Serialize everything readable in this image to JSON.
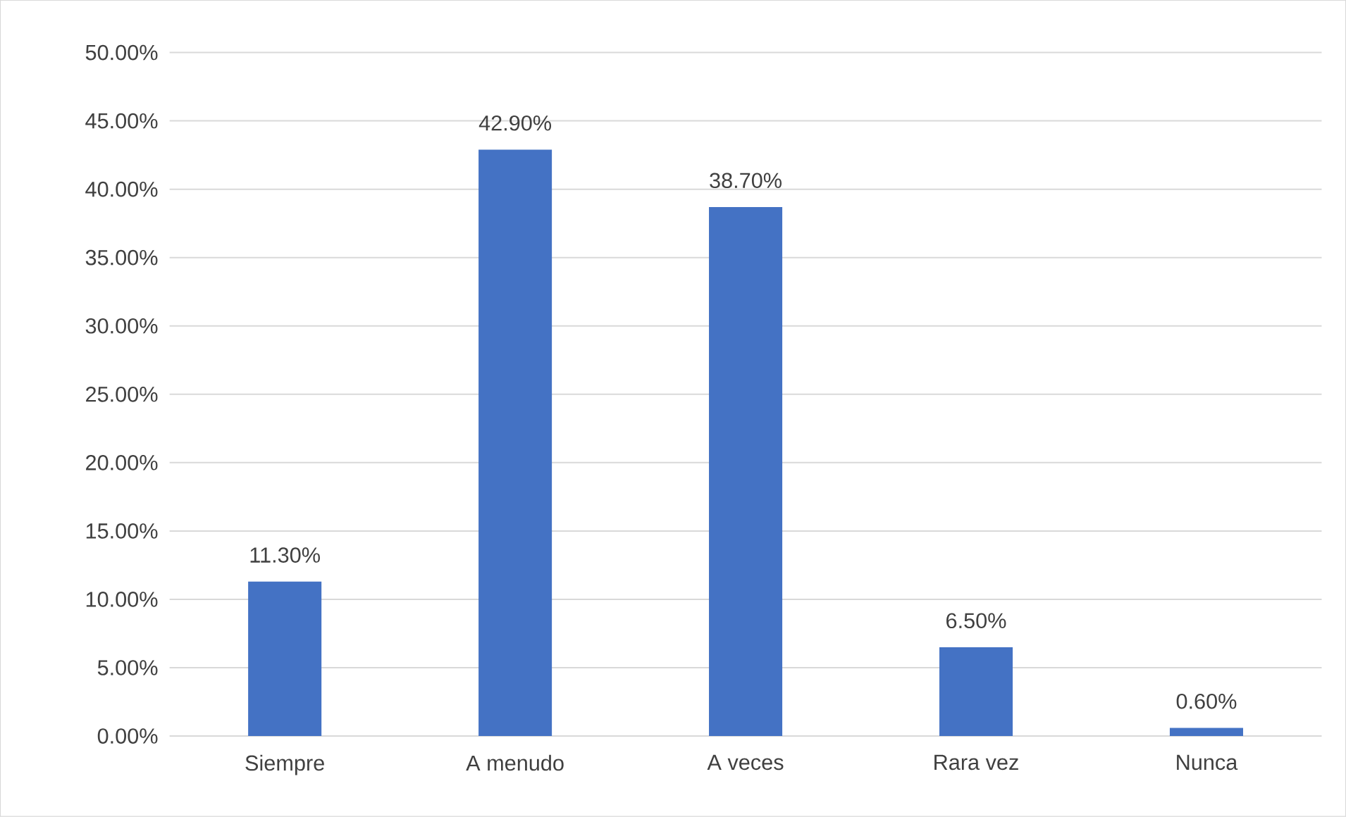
{
  "chart_data": {
    "type": "bar",
    "categories": [
      "Siempre",
      "A menudo",
      "A veces",
      "Rara vez",
      "Nunca"
    ],
    "values": [
      11.3,
      42.9,
      38.7,
      6.5,
      0.6
    ],
    "value_labels": [
      "11.30%",
      "42.90%",
      "38.70%",
      "6.50%",
      "0.60%"
    ],
    "color": "#4472c4",
    "ylim": [
      0,
      50
    ],
    "yticks": [
      {
        "value": 0,
        "label": "0.00%"
      },
      {
        "value": 5,
        "label": "5.00%"
      },
      {
        "value": 10,
        "label": "10.00%"
      },
      {
        "value": 15,
        "label": "15.00%"
      },
      {
        "value": 20,
        "label": "20.00%"
      },
      {
        "value": 25,
        "label": "25.00%"
      },
      {
        "value": 30,
        "label": "30.00%"
      },
      {
        "value": 35,
        "label": "35.00%"
      },
      {
        "value": 40,
        "label": "40.00%"
      },
      {
        "value": 45,
        "label": "45.00%"
      },
      {
        "value": 50,
        "label": "50.00%"
      }
    ],
    "grid": "y"
  }
}
